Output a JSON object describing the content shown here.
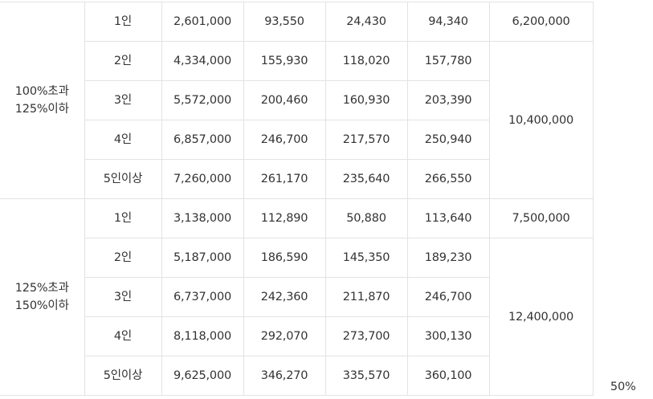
{
  "groups": [
    {
      "label_line1": "100%초과",
      "label_line2": "125%이하",
      "rows": [
        {
          "household": "1인",
          "c1": "2,601,000",
          "c2": "93,550",
          "c3": "24,430",
          "c4": "94,340"
        },
        {
          "household": "2인",
          "c1": "4,334,000",
          "c2": "155,930",
          "c3": "118,020",
          "c4": "157,780"
        },
        {
          "household": "3인",
          "c1": "5,572,000",
          "c2": "200,460",
          "c3": "160,930",
          "c4": "203,390"
        },
        {
          "household": "4인",
          "c1": "6,857,000",
          "c2": "246,700",
          "c3": "217,570",
          "c4": "250,940"
        },
        {
          "household": "5인이상",
          "c1": "7,260,000",
          "c2": "261,170",
          "c3": "235,640",
          "c4": "266,550"
        }
      ],
      "limit_single": "6,200,000",
      "limit_multi": "10,400,000"
    },
    {
      "label_line1": "125%초과",
      "label_line2": "150%이하",
      "rows": [
        {
          "household": "1인",
          "c1": "3,138,000",
          "c2": "112,890",
          "c3": "50,880",
          "c4": "113,640"
        },
        {
          "household": "2인",
          "c1": "5,187,000",
          "c2": "186,590",
          "c3": "145,350",
          "c4": "189,230"
        },
        {
          "household": "3인",
          "c1": "6,737,000",
          "c2": "242,360",
          "c3": "211,870",
          "c4": "246,700"
        },
        {
          "household": "4인",
          "c1": "8,118,000",
          "c2": "292,070",
          "c3": "273,700",
          "c4": "300,130"
        },
        {
          "household": "5인이상",
          "c1": "9,625,000",
          "c2": "346,270",
          "c3": "335,570",
          "c4": "360,100"
        }
      ],
      "limit_single": "7,500,000",
      "limit_multi": "12,400,000"
    }
  ],
  "support_rate": "50%"
}
